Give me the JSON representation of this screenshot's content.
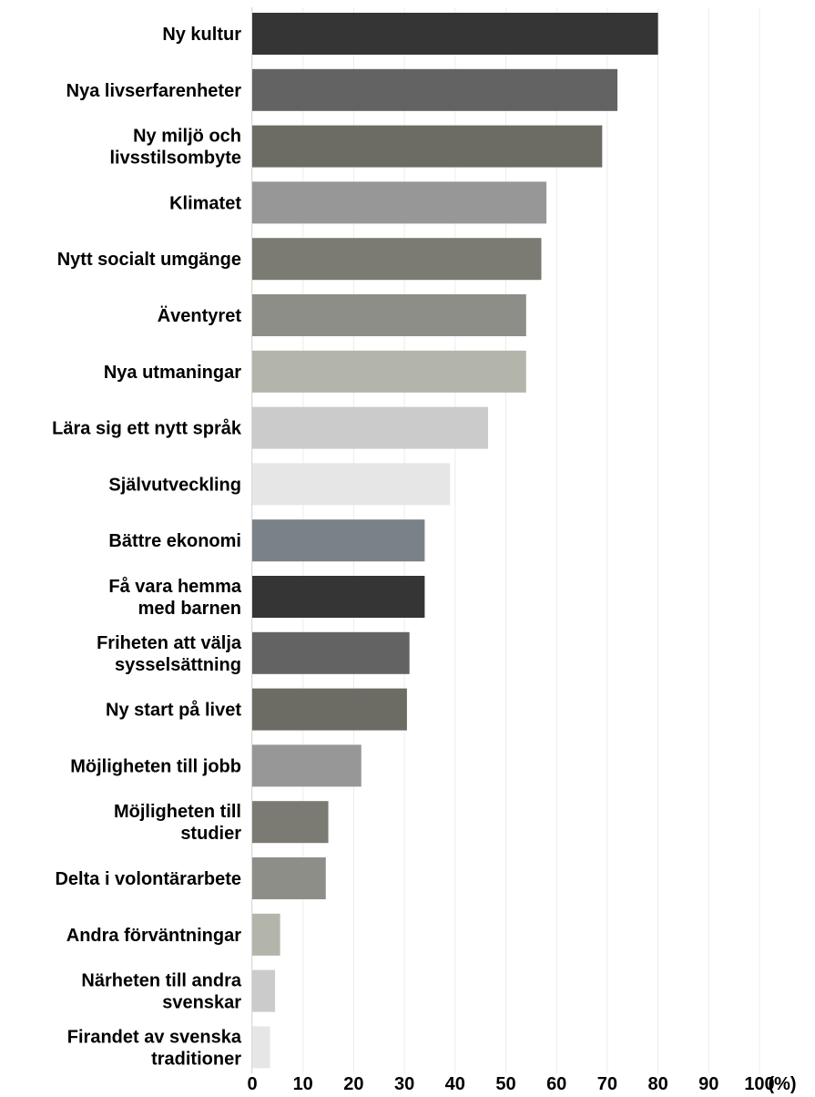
{
  "chart_data": {
    "type": "bar",
    "orientation": "horizontal",
    "categories": [
      [
        "Ny kultur"
      ],
      [
        "Nya livserfarenheter"
      ],
      [
        "Ny miljö och",
        "livsstilsombyte"
      ],
      [
        "Klimatet"
      ],
      [
        "Nytt socialt umgänge"
      ],
      [
        "Äventyret"
      ],
      [
        "Nya utmaningar"
      ],
      [
        "Lära sig ett nytt språk"
      ],
      [
        "Självutveckling"
      ],
      [
        "Bättre ekonomi"
      ],
      [
        "Få vara hemma",
        "med barnen"
      ],
      [
        "Friheten att välja",
        "sysselsättning"
      ],
      [
        "Ny start på livet"
      ],
      [
        "Möjligheten till jobb"
      ],
      [
        "Möjligheten till",
        "studier"
      ],
      [
        "Delta i volontärarbete"
      ],
      [
        "Andra förväntningar"
      ],
      [
        "Närheten till andra",
        "svenskar"
      ],
      [
        "Firandet av svenska",
        "traditioner"
      ]
    ],
    "values": [
      80,
      72,
      69,
      58,
      57,
      54,
      54,
      46.5,
      39,
      34,
      34,
      31,
      30.5,
      21.5,
      15,
      14.5,
      5.5,
      4.5,
      3.5
    ],
    "colors": [
      "#353535",
      "#636363",
      "#6c6c64",
      "#979797",
      "#7b7b73",
      "#8e8e88",
      "#b4b5aa",
      "#cbcbcb",
      "#e6e6e6",
      "#7a8187",
      "#353535",
      "#636363",
      "#6c6c64",
      "#979797",
      "#7b7b73",
      "#8e8e88",
      "#b4b5aa",
      "#cbcbcb",
      "#e6e6e6"
    ],
    "x_ticks": [
      "0",
      "10",
      "20",
      "30",
      "40",
      "50",
      "60",
      "70",
      "80",
      "90",
      "100"
    ],
    "x_unit_label": "(%)",
    "xlim": [
      0,
      100
    ],
    "grid": true,
    "legend": "none"
  }
}
